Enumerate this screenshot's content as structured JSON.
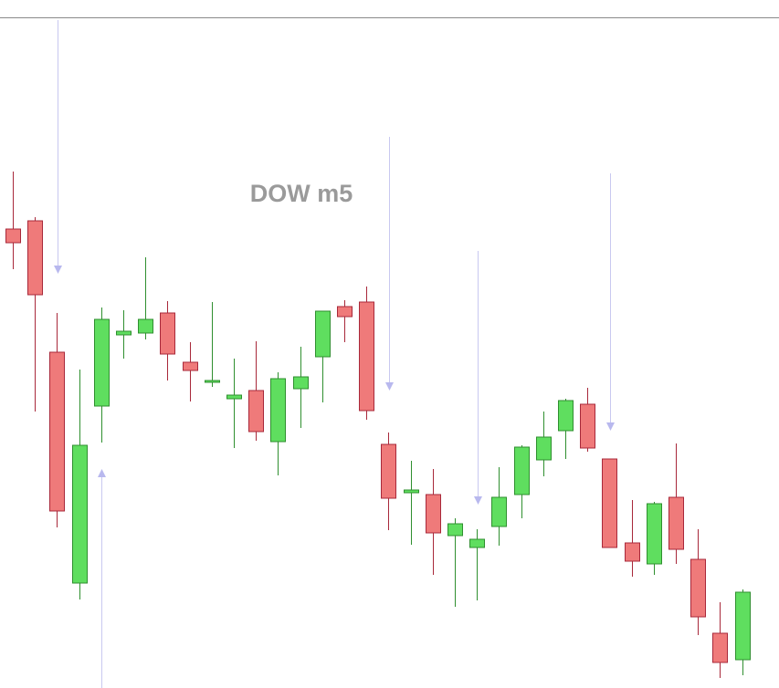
{
  "chart_data": {
    "type": "candlestick",
    "title": "DOW m5",
    "ylim": [
      0,
      735
    ],
    "up_color": "#5fde5f",
    "up_edge": "#2f8f2f",
    "down_color": "#ef7a7a",
    "down_edge": "#a8283a",
    "series": {
      "open": [
        503,
        512,
        368,
        115,
        309,
        387,
        389,
        411,
        357,
        335,
        317,
        326,
        270,
        328,
        363,
        418,
        423,
        267,
        214,
        212,
        167,
        154,
        177,
        212,
        250,
        282,
        311,
        251,
        159,
        136,
        209,
        141,
        60,
        31
      ],
      "high": [
        566,
        516,
        411,
        349,
        417,
        414,
        472,
        424,
        379,
        423,
        361,
        380,
        346,
        374,
        413,
        425,
        440,
        280,
        249,
        240,
        186,
        174,
        242,
        266,
        303,
        317,
        329,
        251,
        206,
        204,
        268,
        174,
        94,
        108
      ],
      "low": [
        459,
        303,
        176,
        97,
        269,
        361,
        382,
        337,
        314,
        330,
        263,
        271,
        233,
        285,
        313,
        379,
        294,
        173,
        157,
        124,
        89,
        96,
        156,
        186,
        232,
        251,
        259,
        154,
        122,
        124,
        136,
        58,
        11,
        14
      ],
      "close": [
        488,
        431,
        194,
        266,
        404,
        391,
        404,
        366,
        348,
        337,
        321,
        281,
        339,
        341,
        413,
        407,
        304,
        208,
        217,
        170,
        180,
        163,
        209,
        264,
        275,
        315,
        263,
        154,
        139,
        202,
        152,
        78,
        28,
        105
      ]
    }
  }
}
